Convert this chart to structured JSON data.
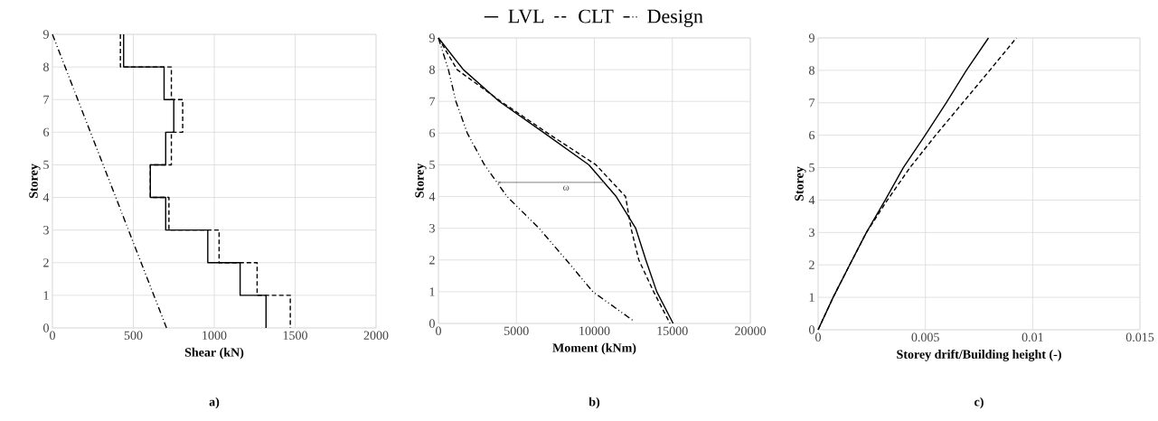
{
  "chart_data": [
    {
      "type": "line",
      "title": "a)",
      "xlabel": "Shear (kN)",
      "ylabel": "Storey",
      "xlim": [
        0,
        2000
      ],
      "xticks": [
        0,
        500,
        1000,
        1500,
        2000
      ],
      "ylim": [
        0,
        9
      ],
      "yticks": [
        0,
        1,
        2,
        3,
        4,
        5,
        6,
        7,
        8,
        9
      ],
      "grid": true,
      "series": [
        {
          "color": "#000000",
          "line_style": "solid",
          "x": [
            440,
            440,
            690,
            690,
            750,
            750,
            700,
            700,
            605,
            605,
            700,
            700,
            960,
            960,
            1160,
            1160,
            1320,
            1320
          ],
          "values": [
            9,
            8,
            8,
            7,
            7,
            6,
            6,
            5,
            5,
            4,
            4,
            3,
            3,
            2,
            2,
            1,
            1,
            0
          ]
        },
        {
          "color": "#000000",
          "line_style": "dashed",
          "x": [
            420,
            420,
            735,
            735,
            805,
            805,
            735,
            735,
            605,
            605,
            720,
            720,
            1030,
            1030,
            1265,
            1265,
            1470,
            1470
          ],
          "values": [
            9,
            8,
            8,
            7,
            7,
            6,
            6,
            5,
            5,
            4,
            4,
            3,
            3,
            2,
            2,
            1,
            1,
            0
          ]
        },
        {
          "color": "#000000",
          "line_style": "dashdotdot",
          "x": [
            0,
            705
          ],
          "values": [
            9,
            0
          ]
        }
      ]
    },
    {
      "type": "line",
      "title": "b)",
      "xlabel": "Moment (kNm)",
      "ylabel": "Storey",
      "xlim": [
        0,
        20000
      ],
      "xticks": [
        0,
        5000,
        10000,
        15000,
        20000
      ],
      "ylim": [
        0,
        9
      ],
      "yticks": [
        0,
        1,
        2,
        3,
        4,
        5,
        6,
        7,
        8,
        9
      ],
      "grid": true,
      "legend": "top",
      "annotations": [
        "ω"
      ],
      "series": [
        {
          "name": "LVL",
          "color": "#000000",
          "line_style": "solid",
          "x": [
            0,
            1600,
            3900,
            6800,
            9650,
            11400,
            12650,
            13300,
            14000,
            15050
          ],
          "values": [
            9,
            8,
            7,
            6,
            5,
            4,
            3,
            2,
            1,
            0
          ]
        },
        {
          "name": "CLT",
          "color": "#000000",
          "line_style": "dashed",
          "x": [
            0,
            1200,
            4000,
            7000,
            10100,
            12000,
            12350,
            12850,
            13800,
            14850
          ],
          "values": [
            9,
            8,
            7,
            6,
            5,
            4,
            3,
            2,
            1,
            0
          ]
        },
        {
          "name": "Design",
          "color": "#000000",
          "line_style": "dashdotdot",
          "x": [
            0,
            640,
            1120,
            1850,
            2950,
            4400,
            6450,
            8200,
            9900,
            12450
          ],
          "values": [
            9,
            8,
            7,
            6,
            5,
            4,
            3,
            2,
            1,
            0.1
          ]
        }
      ]
    },
    {
      "type": "line",
      "title": "c)",
      "xlabel": "Storey drift/Building height (-)",
      "ylabel": "Storey",
      "xlim": [
        0,
        0.015
      ],
      "xticks": [
        0,
        0.005,
        0.01,
        0.015
      ],
      "ylim": [
        0,
        9
      ],
      "yticks": [
        0,
        1,
        2,
        3,
        4,
        5,
        6,
        7,
        8,
        9
      ],
      "grid": true,
      "series": [
        {
          "color": "#000000",
          "line_style": "solid",
          "x": [
            0,
            0.0007,
            0.00147,
            0.00225,
            0.00313,
            0.00397,
            0.00499,
            0.00597,
            0.00691,
            0.00794
          ],
          "values": [
            0,
            1,
            2,
            3,
            4,
            5,
            6,
            7,
            8,
            9
          ]
        },
        {
          "color": "#000000",
          "line_style": "dashed",
          "x": [
            0,
            0.0007,
            0.00147,
            0.00225,
            0.00323,
            0.00428,
            0.00548,
            0.00674,
            0.008,
            0.00924
          ],
          "values": [
            0,
            1,
            2,
            3,
            4,
            5,
            6,
            7,
            8,
            9
          ]
        }
      ]
    }
  ]
}
